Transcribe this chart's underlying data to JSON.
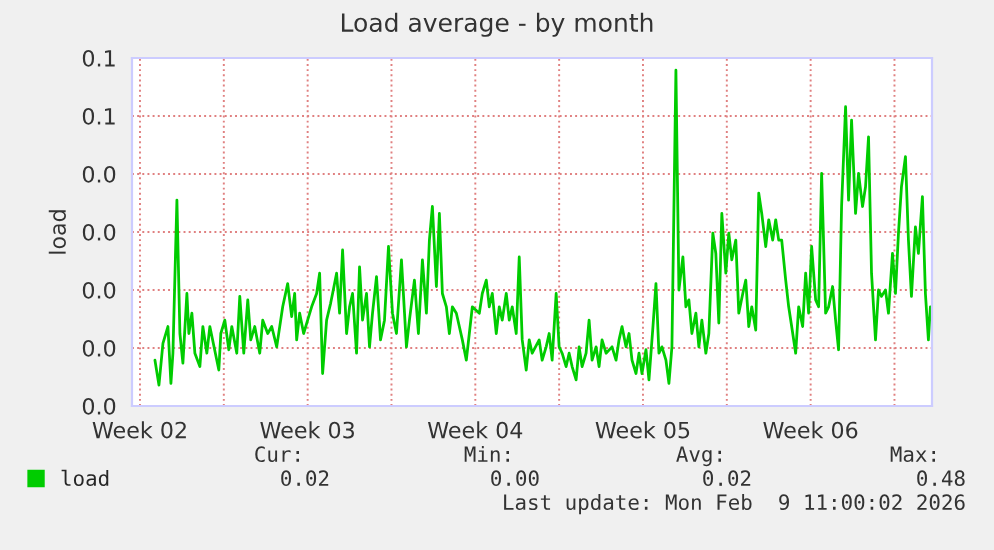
{
  "chart_data": {
    "type": "line",
    "title": "Load average - by month",
    "ylabel": "load",
    "xlim": [
      "2026-01-08T00:00",
      "2026-02-10T09:36"
    ],
    "ylim": [
      0,
      0.06
    ],
    "xticks": [
      {
        "value": "2026-01-08T08:00",
        "label": "Week 02"
      },
      {
        "value": "2026-01-11T20:00",
        "label": null
      },
      {
        "value": "2026-01-15T08:00",
        "label": "Week 03"
      },
      {
        "value": "2026-01-18T20:00",
        "label": null
      },
      {
        "value": "2026-01-22T08:00",
        "label": "Week 04"
      },
      {
        "value": "2026-01-25T20:00",
        "label": null
      },
      {
        "value": "2026-01-29T08:00",
        "label": "Week 05"
      },
      {
        "value": "2026-02-01T20:00",
        "label": null
      },
      {
        "value": "2026-02-05T08:00",
        "label": "Week 06"
      },
      {
        "value": "2026-02-08T20:00",
        "label": null
      }
    ],
    "yticks": [
      {
        "value": 0,
        "label": "0.0"
      },
      {
        "value": 0.01,
        "label": "0.0"
      },
      {
        "value": 0.02,
        "label": "0.0"
      },
      {
        "value": 0.03,
        "label": "0.0"
      },
      {
        "value": 0.04,
        "label": "0.0"
      },
      {
        "value": 0.05,
        "label": "0.1"
      },
      {
        "value": 0.06,
        "label": "0.1"
      }
    ],
    "grid": true,
    "legend": "bottom left",
    "annotations": [
      "Cur:",
      "Min:",
      "Avg:",
      "Max:",
      "0.02",
      "0.00",
      "0.02",
      "0.48",
      "Last update: Mon Feb  9 11:00:02 2026"
    ],
    "series": [
      {
        "name": "load",
        "color": "#00cc00",
        "x": [
          "2026-01-08T23:00",
          "2026-01-09T03:00",
          "2026-01-09T07:00",
          "2026-01-09T12:00",
          "2026-01-09T15:00",
          "2026-01-09T17:00",
          "2026-01-09T21:00",
          "2026-01-10T00:00",
          "2026-01-10T03:00",
          "2026-01-10T07:00",
          "2026-01-10T09:00",
          "2026-01-10T12:00",
          "2026-01-10T15:00",
          "2026-01-10T20:00",
          "2026-01-10T23:00",
          "2026-01-11T03:00",
          "2026-01-11T06:00",
          "2026-01-11T15:00",
          "2026-01-11T17:00",
          "2026-01-11T21:00",
          "2026-01-12T01:00",
          "2026-01-12T04:00",
          "2026-01-12T09:00",
          "2026-01-12T12:00",
          "2026-01-12T16:00",
          "2026-01-12T20:00",
          "2026-01-12T23:00",
          "2026-01-13T03:00",
          "2026-01-13T08:00",
          "2026-01-13T11:00",
          "2026-01-13T16:00",
          "2026-01-13T20:00",
          "2026-01-14T01:00",
          "2026-01-14T07:00",
          "2026-01-14T12:00",
          "2026-01-14T16:00",
          "2026-01-14T19:00",
          "2026-01-14T21:00",
          "2026-01-15T00:00",
          "2026-01-15T04:00",
          "2026-01-15T08:00",
          "2026-01-15T12:00",
          "2026-01-15T17:00",
          "2026-01-15T20:00",
          "2026-01-15T23:00",
          "2026-01-16T03:00",
          "2026-01-16T07:00",
          "2026-01-16T09:00",
          "2026-01-16T13:00",
          "2026-01-16T16:00",
          "2026-01-16T19:00",
          "2026-01-16T23:00",
          "2026-01-17T02:00",
          "2026-01-17T05:00",
          "2026-01-17T09:00",
          "2026-01-17T12:00",
          "2026-01-17T15:00",
          "2026-01-17T19:00",
          "2026-01-17T22:00",
          "2026-01-18T01:00",
          "2026-01-18T05:00",
          "2026-01-18T09:00",
          "2026-01-18T13:00",
          "2026-01-18T17:00",
          "2026-01-18T21:00",
          "2026-01-19T01:00",
          "2026-01-19T06:00",
          "2026-01-19T11:00",
          "2026-01-19T14:00",
          "2026-01-19T19:00",
          "2026-01-19T23:00",
          "2026-01-20T03:00",
          "2026-01-20T07:00",
          "2026-01-20T10:00",
          "2026-01-20T13:00",
          "2026-01-20T17:00",
          "2026-01-20T20:00",
          "2026-01-20T23:00",
          "2026-01-21T03:00",
          "2026-01-21T06:00",
          "2026-01-21T09:00",
          "2026-01-21T13:00",
          "2026-01-21T19:00",
          "2026-01-21T23:00",
          "2026-01-22T02:00",
          "2026-01-22T05:00",
          "2026-01-22T12:00",
          "2026-01-22T15:00",
          "2026-01-22T19:00",
          "2026-01-22T22:00",
          "2026-01-23T01:00",
          "2026-01-23T05:00",
          "2026-01-23T08:00",
          "2026-01-23T11:00",
          "2026-01-23T15:00",
          "2026-01-23T18:00",
          "2026-01-23T21:00",
          "2026-01-24T01:00",
          "2026-01-24T04:00",
          "2026-01-24T07:00",
          "2026-01-24T11:00",
          "2026-01-24T14:00",
          "2026-01-24T17:00",
          "2026-01-25T00:00",
          "2026-01-25T03:00",
          "2026-01-25T07:00",
          "2026-01-25T10:00",
          "2026-01-25T13:00",
          "2026-01-25T17:00",
          "2026-01-25T20:00",
          "2026-01-25T23:00",
          "2026-01-26T03:00",
          "2026-01-26T06:00",
          "2026-01-26T09:00",
          "2026-01-26T13:00",
          "2026-01-26T16:00",
          "2026-01-26T19:00",
          "2026-01-26T23:00",
          "2026-01-27T02:00",
          "2026-01-27T05:00",
          "2026-01-27T09:00",
          "2026-01-27T12:00",
          "2026-01-27T15:00",
          "2026-01-27T19:00",
          "2026-01-28T01:00",
          "2026-01-28T05:00",
          "2026-01-28T08:00",
          "2026-01-28T11:00",
          "2026-01-28T15:00",
          "2026-01-28T18:00",
          "2026-01-28T21:00",
          "2026-01-29T01:00",
          "2026-01-29T04:00",
          "2026-01-29T07:00",
          "2026-01-29T11:00",
          "2026-01-29T14:00",
          "2026-01-29T18:00",
          "2026-01-29T21:00",
          "2026-01-30T00:00",
          "2026-01-30T03:00",
          "2026-01-30T07:00",
          "2026-01-30T10:00",
          "2026-01-30T13:00",
          "2026-01-30T17:00",
          "2026-01-30T20:00",
          "2026-01-31T00:00",
          "2026-01-31T03:00",
          "2026-01-31T06:00",
          "2026-01-31T09:00",
          "2026-01-31T13:00",
          "2026-01-31T16:00",
          "2026-01-31T19:00",
          "2026-01-31T23:00",
          "2026-02-01T02:00",
          "2026-02-01T06:00",
          "2026-02-01T09:00",
          "2026-02-01T12:00",
          "2026-02-01T15:00",
          "2026-02-01T19:00",
          "2026-02-01T22:00",
          "2026-02-02T01:00",
          "2026-02-02T05:00",
          "2026-02-02T08:00",
          "2026-02-02T12:00",
          "2026-02-02T15:00",
          "2026-02-02T18:00",
          "2026-02-02T21:00",
          "2026-02-03T01:00",
          "2026-02-03T04:00",
          "2026-02-03T07:00",
          "2026-02-03T11:00",
          "2026-02-03T14:00",
          "2026-02-03T18:00",
          "2026-02-03T21:00",
          "2026-02-04T00:00",
          "2026-02-04T03:00",
          "2026-02-04T07:00",
          "2026-02-04T10:00",
          "2026-02-04T13:00",
          "2026-02-04T17:00",
          "2026-02-04T20:00",
          "2026-02-05T00:00",
          "2026-02-05T03:00",
          "2026-02-05T06:00",
          "2026-02-05T09:00",
          "2026-02-05T13:00",
          "2026-02-05T16:00",
          "2026-02-05T19:00",
          "2026-02-05T23:00",
          "2026-02-06T02:00",
          "2026-02-06T06:00",
          "2026-02-06T09:00",
          "2026-02-06T12:00",
          "2026-02-06T15:00",
          "2026-02-06T19:00",
          "2026-02-06T22:00",
          "2026-02-07T01:00",
          "2026-02-07T05:00",
          "2026-02-07T08:00",
          "2026-02-07T12:00",
          "2026-02-07T15:00",
          "2026-02-07T18:00",
          "2026-02-07T21:00",
          "2026-02-08T01:00",
          "2026-02-08T04:00",
          "2026-02-08T07:00",
          "2026-02-08T11:00",
          "2026-02-08T14:00",
          "2026-02-08T18:00",
          "2026-02-08T21:00",
          "2026-02-09T00:00",
          "2026-02-09T03:00",
          "2026-02-09T07:00",
          "2026-02-09T10:00",
          "2026-02-09T13:00",
          "2026-02-09T17:00",
          "2026-02-09T20:00",
          "2026-02-10T00:00",
          "2026-02-10T03:00",
          "2026-02-10T06:00",
          "2026-02-10T08:00"
        ],
        "values": [
          0.0079,
          0.0036,
          0.0108,
          0.0137,
          0.0039,
          0.0091,
          0.0355,
          0.0125,
          0.0074,
          0.0194,
          0.0125,
          0.016,
          0.0091,
          0.0068,
          0.0137,
          0.0091,
          0.0137,
          0.0062,
          0.0125,
          0.0148,
          0.0097,
          0.0137,
          0.0091,
          0.0189,
          0.0091,
          0.0183,
          0.0114,
          0.0137,
          0.0091,
          0.0148,
          0.0125,
          0.0137,
          0.0102,
          0.0171,
          0.0211,
          0.0154,
          0.0194,
          0.0114,
          0.016,
          0.0125,
          0.0148,
          0.0171,
          0.0194,
          0.0229,
          0.0056,
          0.0148,
          0.0177,
          0.0194,
          0.0229,
          0.016,
          0.0269,
          0.0125,
          0.0171,
          0.0194,
          0.0091,
          0.024,
          0.0148,
          0.0194,
          0.0102,
          0.016,
          0.0223,
          0.0114,
          0.0148,
          0.0275,
          0.016,
          0.0125,
          0.0252,
          0.0102,
          0.0148,
          0.0217,
          0.0125,
          0.0252,
          0.016,
          0.0286,
          0.0344,
          0.0206,
          0.0332,
          0.0194,
          0.0171,
          0.0125,
          0.0171,
          0.016,
          0.0114,
          0.0079,
          0.0125,
          0.0171,
          0.016,
          0.0194,
          0.0217,
          0.0171,
          0.0194,
          0.0125,
          0.0171,
          0.0148,
          0.0194,
          0.0148,
          0.0171,
          0.0125,
          0.0257,
          0.0114,
          0.0062,
          0.0114,
          0.0091,
          0.0114,
          0.0079,
          0.0102,
          0.0125,
          0.0079,
          0.0194,
          0.0102,
          0.0091,
          0.0068,
          0.0091,
          0.0068,
          0.0045,
          0.0102,
          0.0068,
          0.0091,
          0.0148,
          0.0079,
          0.0102,
          0.0068,
          0.0114,
          0.0091,
          0.0102,
          0.0079,
          0.0114,
          0.0137,
          0.0102,
          0.0125,
          0.0079,
          0.0056,
          0.0091,
          0.0056,
          0.0097,
          0.0045,
          0.0137,
          0.0211,
          0.0091,
          0.0102,
          0.0079,
          0.0039,
          0.0102,
          0.0579,
          0.02,
          0.0257,
          0.0171,
          0.0183,
          0.0125,
          0.016,
          0.0102,
          0.0148,
          0.0091,
          0.0125,
          0.0298,
          0.0263,
          0.0143,
          0.0332,
          0.0229,
          0.0298,
          0.0252,
          0.0286,
          0.016,
          0.0194,
          0.0217,
          0.0137,
          0.0171,
          0.0131,
          0.0367,
          0.0332,
          0.0275,
          0.0321,
          0.0286,
          0.0321,
          0.0286,
          0.0286,
          0.0217,
          0.0171,
          0.0137,
          0.0091,
          0.0171,
          0.0137,
          0.0229,
          0.016,
          0.0275,
          0.0183,
          0.0171,
          0.0401,
          0.016,
          0.0171,
          0.0206,
          0.0148,
          0.0097,
          0.0344,
          0.0516,
          0.0355,
          0.0493,
          0.0332,
          0.0401,
          0.0344,
          0.0378,
          0.0464,
          0.0229,
          0.0114,
          0.02,
          0.0189,
          0.02,
          0.016,
          0.0263,
          0.0194,
          0.0298,
          0.0378,
          0.043,
          0.0286,
          0.0189,
          0.0309,
          0.0263,
          0.0361,
          0.0194,
          0.0114,
          0.0171
        ]
      }
    ]
  }
}
